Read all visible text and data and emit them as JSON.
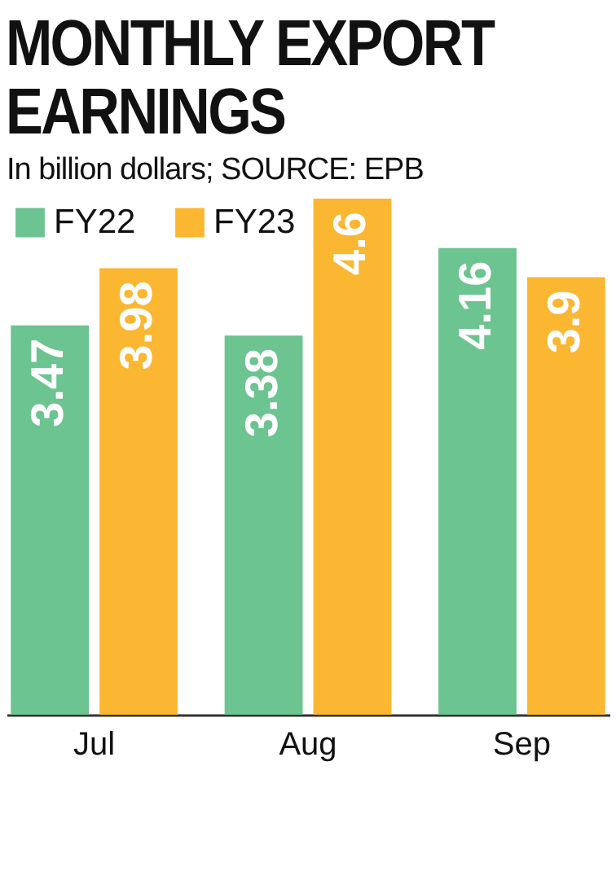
{
  "chart_data": {
    "type": "bar",
    "title": "MONTHLY EXPORT EARNINGS",
    "subtitle": "In billion dollars; SOURCE: EPB",
    "categories": [
      "Jul",
      "Aug",
      "Sep"
    ],
    "series": [
      {
        "name": "FY22",
        "color": "#6cc490",
        "values": [
          3.47,
          3.38,
          4.16
        ]
      },
      {
        "name": "FY23",
        "color": "#fbb731",
        "values": [
          3.98,
          4.6,
          3.9
        ]
      }
    ],
    "data_labels": true,
    "legend": "top left"
  }
}
